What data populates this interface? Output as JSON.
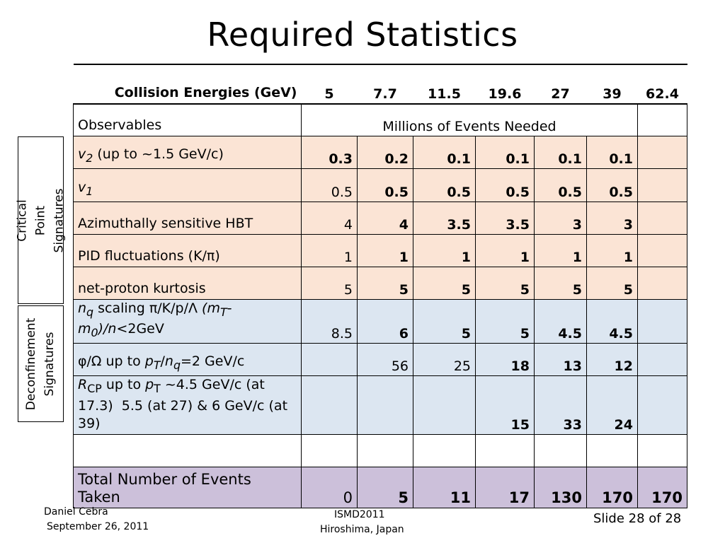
{
  "slide_title": "Required Statistics",
  "header": {
    "label": "Collision Energies (GeV)",
    "energies": [
      "5",
      "7.7",
      "11.5",
      "19.6",
      "27",
      "39",
      "62.4"
    ]
  },
  "observables_row": {
    "label": "Observables",
    "span_text": "Millions of Events Needed"
  },
  "rows": [
    {
      "label": "v2 (up to ~1.5 GeV/c)",
      "group": "critical",
      "values": [
        "0.3",
        "0.2",
        "0.1",
        "0.1",
        "0.1",
        "0.1",
        ""
      ]
    },
    {
      "label": "v1",
      "group": "critical",
      "values": [
        "0.5",
        "0.5",
        "0.5",
        "0.5",
        "0.5",
        "0.5",
        ""
      ]
    },
    {
      "label": "Azimuthally sensitive HBT",
      "group": "critical",
      "values": [
        "4",
        "4",
        "3.5",
        "3.5",
        "3",
        "3",
        ""
      ]
    },
    {
      "label": "PID fluctuations (K/π)",
      "group": "critical",
      "values": [
        "1",
        "1",
        "1",
        "1",
        "1",
        "1",
        ""
      ]
    },
    {
      "label": "net-proton kurtosis",
      "group": "critical",
      "values": [
        "5",
        "5",
        "5",
        "5",
        "5",
        "5",
        ""
      ]
    },
    {
      "label": "nq scaling π/K/p/Λ (mT-m0)/n<2GeV",
      "group": "deconfinement",
      "values": [
        "8.5",
        "6",
        "5",
        "5",
        "4.5",
        "4.5",
        ""
      ]
    },
    {
      "label": "φ/Ω up to pT/nq=2 GeV/c",
      "group": "deconfinement",
      "values": [
        "",
        "56",
        "25",
        "18",
        "13",
        "12",
        ""
      ]
    },
    {
      "label": "RCP up to pT ~4.5 GeV/c (at 17.3) 5.5 (at 27) & 6 GeV/c (at 39)",
      "group": "deconfinement",
      "values": [
        "",
        "",
        "",
        "15",
        "33",
        "24",
        ""
      ]
    }
  ],
  "total_row": {
    "label": "Total Number of Events Taken",
    "values": [
      "0",
      "5",
      "11",
      "17",
      "130",
      "170",
      "170"
    ]
  },
  "side_labels": {
    "critical": "Critical Point Signatures",
    "deconfinement": "Deconfinement Signatures"
  },
  "footer": {
    "author": "Daniel Cebra",
    "date": "September 26, 2011",
    "conference": "ISMD2011",
    "location": "Hiroshima, Japan",
    "slide_number": "Slide 28 of 28"
  },
  "colors": {
    "critical_bg": "#fbe4d5",
    "deconfinement_bg": "#dce6f1",
    "total_bg": "#ccc0da"
  }
}
